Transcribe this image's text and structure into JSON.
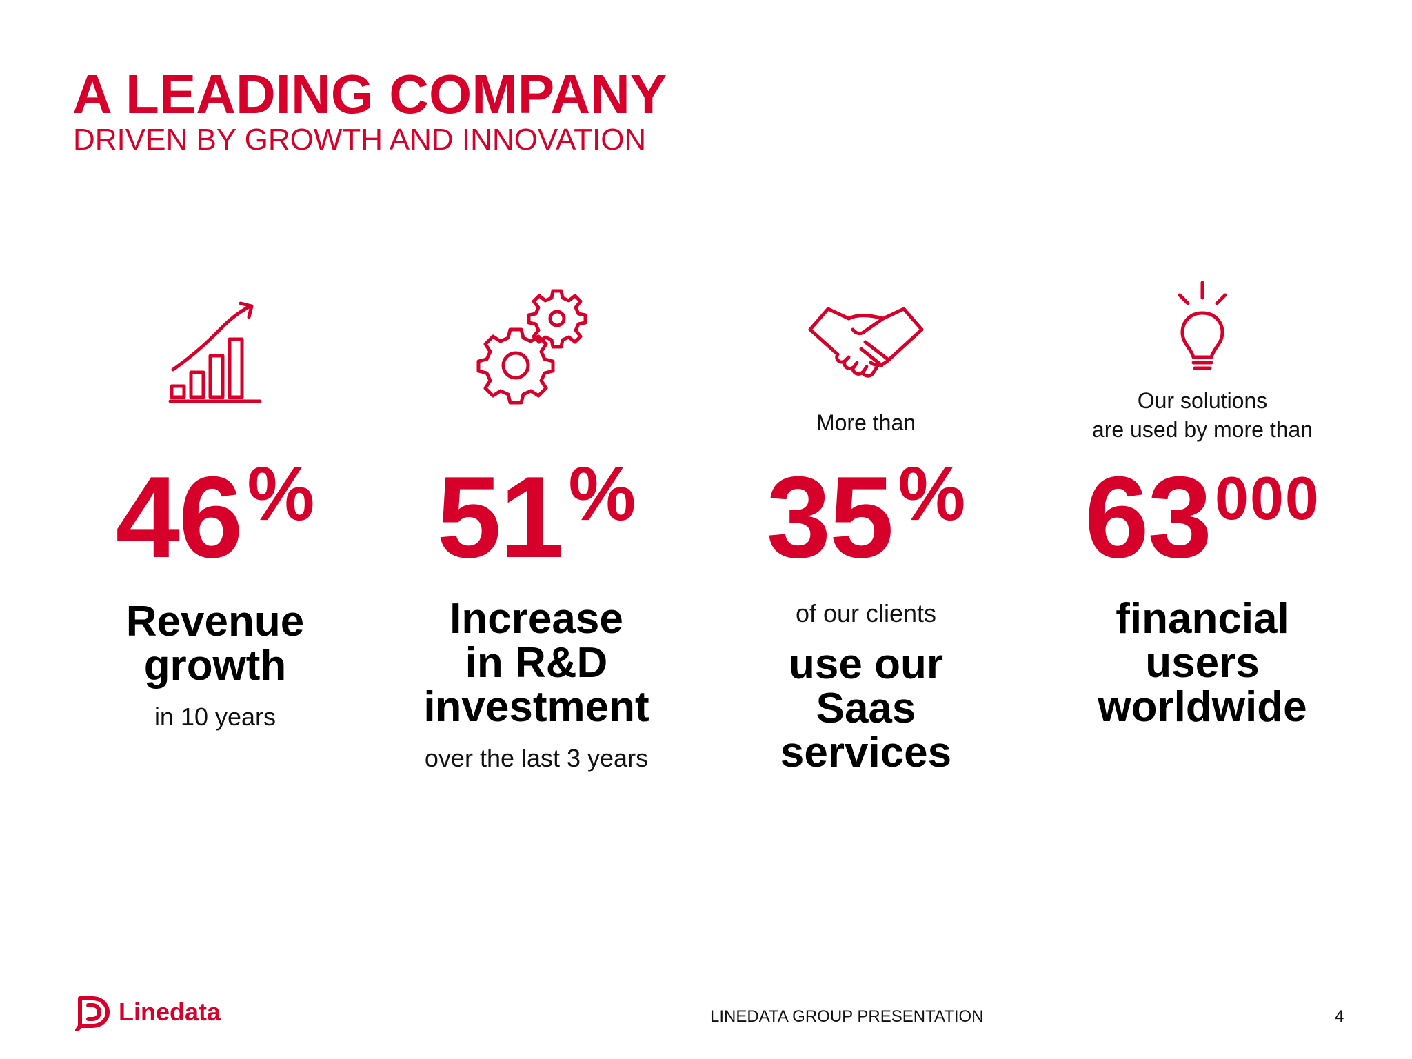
{
  "header": {
    "title": "A LEADING COMPANY",
    "subtitle": "DRIVEN BY GROWTH AND INNOVATION"
  },
  "accent_color": "#d6002a",
  "stats": [
    {
      "icon": "growth-chart-icon",
      "pre": "",
      "value": "46",
      "suffix": "%",
      "mid": "",
      "description_lines": [
        "Revenue",
        "growth"
      ],
      "sub": "in 10 years"
    },
    {
      "icon": "gears-icon",
      "pre": "",
      "value": "51",
      "suffix": "%",
      "mid": "",
      "description_lines": [
        "Increase",
        "in R&D",
        "investment"
      ],
      "sub": "over the last 3 years"
    },
    {
      "icon": "handshake-icon",
      "pre": "More than",
      "value": "35",
      "suffix": "%",
      "mid": "of our clients",
      "description_lines": [
        "use our",
        "Saas",
        "services"
      ],
      "sub": ""
    },
    {
      "icon": "lightbulb-icon",
      "pre_lines": [
        "Our solutions",
        "are used by more than"
      ],
      "value": "63",
      "suffix": "000",
      "mid": "",
      "description_lines": [
        "financial",
        "users",
        "worldwide"
      ],
      "sub": ""
    }
  ],
  "footer": {
    "brand": "Linedata",
    "center": "LINEDATA GROUP PRESENTATION",
    "page": "4"
  }
}
